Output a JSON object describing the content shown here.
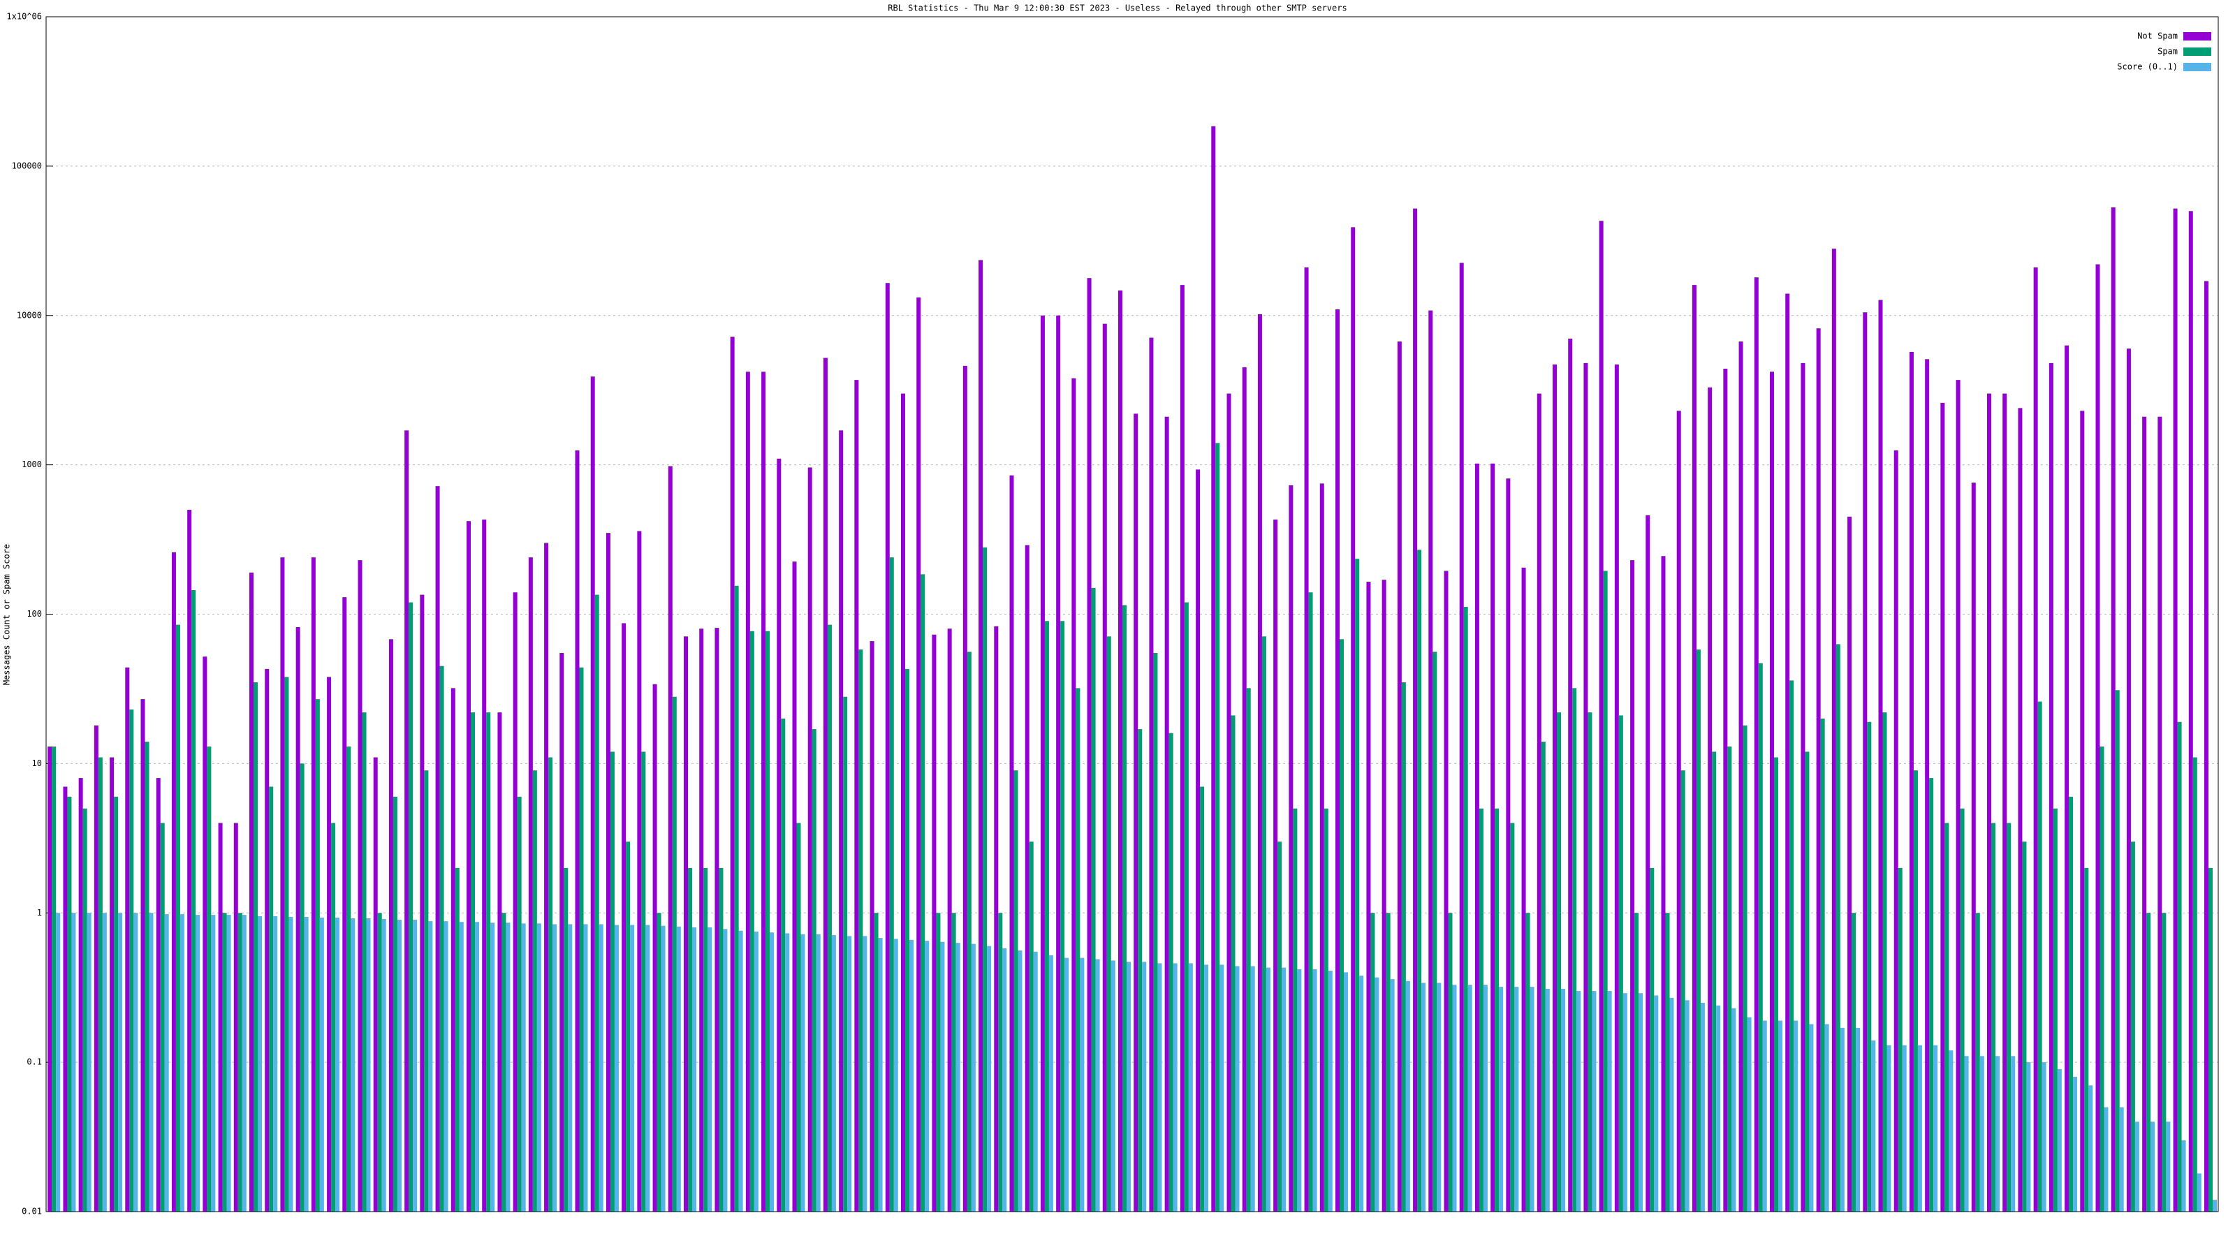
{
  "chart_data": {
    "type": "bar",
    "title": "RBL Statistics - Thu Mar  9 12:00:30 EST 2023 - Useless - Relayed through other SMTP servers",
    "y_label": "Messages Count or Spam Score",
    "log_y": true,
    "grid": true,
    "legend": "top-right",
    "ylim": [
      0.01,
      1000000
    ],
    "yticks": [
      0.01,
      0.1,
      1,
      10,
      100,
      1000,
      10000,
      100000,
      {
        "value": 1000000,
        "label": "1x10^06"
      }
    ],
    "categories": [
      null,
      null,
      null,
      null,
      null,
      null,
      null,
      null,
      null,
      null,
      null,
      null,
      null,
      null,
      null,
      null,
      null,
      null,
      null,
      null,
      null,
      null,
      null,
      null,
      null,
      null,
      null,
      null,
      null,
      null,
      null,
      null,
      null,
      null,
      null,
      null,
      null,
      null,
      null,
      null,
      null,
      null,
      null,
      null,
      null,
      null,
      null,
      null,
      null,
      null,
      null,
      null,
      null,
      null,
      null,
      null,
      null,
      null,
      null,
      null,
      null,
      null,
      null,
      null,
      null,
      null,
      null,
      null,
      null,
      null,
      null,
      null,
      null,
      null,
      null,
      null,
      null,
      null,
      null,
      null,
      null,
      null,
      null,
      null,
      null,
      null,
      null,
      null,
      null,
      null,
      null,
      null,
      null,
      null,
      null,
      null,
      null,
      null,
      null,
      null,
      null,
      null,
      null,
      null,
      null,
      null,
      null,
      null,
      null,
      null,
      null,
      null,
      null,
      null,
      null,
      null,
      null,
      null,
      null,
      null,
      null,
      null,
      null,
      null,
      null,
      null,
      null,
      null,
      null,
      null,
      null,
      null,
      null,
      null,
      null,
      null,
      null,
      null,
      null,
      null
    ],
    "series": [
      {
        "name": "Not Spam",
        "color": "#9400d3",
        "values": [
          13,
          7,
          8,
          18,
          11,
          44,
          27,
          8,
          260,
          500,
          52,
          4,
          4,
          190,
          43,
          240,
          82,
          240,
          38,
          130,
          230,
          11,
          68,
          1700,
          135,
          720,
          32,
          420,
          430,
          22,
          140,
          240,
          300,
          55,
          1250,
          3900,
          350,
          87,
          360,
          34,
          980,
          71,
          80,
          81,
          7200,
          4200,
          4200,
          1100,
          225,
          960,
          5200,
          1700,
          3700,
          66,
          16500,
          3000,
          13200,
          73,
          80,
          4600,
          23500,
          83,
          850,
          290,
          10000,
          10000,
          3800,
          17800,
          8800,
          14700,
          2200,
          7100,
          2100,
          16000,
          930,
          185000,
          3000,
          4500,
          10200,
          430,
          730,
          21000,
          750,
          11000,
          39000,
          165,
          170,
          6700,
          52000,
          10800,
          195,
          22500,
          1020,
          1020,
          810,
          205,
          3000,
          4700,
          7000,
          4800,
          43000,
          4700,
          230,
          460,
          245,
          2300,
          16000,
          3300,
          4400,
          6700,
          18000,
          4200,
          14000,
          4800,
          8200,
          28000,
          450,
          10500,
          12700,
          1250,
          5700,
          5100,
          2600,
          3700,
          760,
          3000,
          3000,
          2400,
          21000,
          4800,
          6300,
          2300,
          22000,
          53000,
          6000,
          2100,
          2100,
          52000,
          50000,
          17000
        ]
      },
      {
        "name": "Spam",
        "color": "#009e73",
        "values": [
          13,
          6,
          5,
          11,
          6,
          23,
          14,
          4,
          85,
          145,
          13,
          1,
          1,
          35,
          7,
          38,
          10,
          27,
          4,
          13,
          22,
          1,
          6,
          120,
          9,
          45,
          2,
          22,
          22,
          1,
          6,
          9,
          11,
          2,
          44,
          135,
          12,
          3,
          12,
          1,
          28,
          2,
          2,
          2,
          155,
          77,
          77,
          20,
          4,
          17,
          85,
          28,
          58,
          1,
          240,
          43,
          185,
          1,
          1,
          56,
          280,
          1,
          9,
          3,
          90,
          90,
          32,
          150,
          71,
          115,
          17,
          55,
          16,
          120,
          7,
          1400,
          21,
          32,
          71,
          3,
          5,
          140,
          5,
          68,
          235,
          1,
          1,
          35,
          270,
          56,
          1,
          112,
          5,
          5,
          4,
          1,
          14,
          22,
          32,
          22,
          195,
          21,
          1,
          2,
          1,
          9,
          58,
          12,
          13,
          18,
          47,
          11,
          36,
          12,
          20,
          63,
          1,
          19,
          22,
          2,
          9,
          8,
          4,
          5,
          1,
          4,
          4,
          3,
          26,
          5,
          6,
          2,
          13,
          31,
          3,
          1,
          1,
          19,
          11,
          2
        ]
      },
      {
        "name": "Score (0..1)",
        "color": "#56b4e9",
        "values": [
          1,
          1,
          1,
          1,
          1,
          1,
          1,
          0.98,
          0.98,
          0.97,
          0.97,
          0.97,
          0.97,
          0.95,
          0.95,
          0.94,
          0.94,
          0.93,
          0.93,
          0.92,
          0.92,
          0.91,
          0.9,
          0.9,
          0.88,
          0.88,
          0.87,
          0.87,
          0.86,
          0.86,
          0.85,
          0.85,
          0.84,
          0.84,
          0.84,
          0.84,
          0.83,
          0.83,
          0.83,
          0.82,
          0.81,
          0.8,
          0.8,
          0.78,
          0.76,
          0.75,
          0.74,
          0.73,
          0.72,
          0.72,
          0.71,
          0.7,
          0.7,
          0.68,
          0.67,
          0.66,
          0.65,
          0.64,
          0.63,
          0.62,
          0.6,
          0.58,
          0.56,
          0.55,
          0.52,
          0.5,
          0.5,
          0.49,
          0.48,
          0.47,
          0.47,
          0.46,
          0.46,
          0.46,
          0.45,
          0.45,
          0.44,
          0.44,
          0.43,
          0.43,
          0.42,
          0.42,
          0.41,
          0.4,
          0.38,
          0.37,
          0.36,
          0.35,
          0.34,
          0.34,
          0.33,
          0.33,
          0.33,
          0.32,
          0.32,
          0.32,
          0.31,
          0.31,
          0.3,
          0.3,
          0.3,
          0.29,
          0.29,
          0.28,
          0.27,
          0.26,
          0.25,
          0.24,
          0.23,
          0.2,
          0.19,
          0.19,
          0.19,
          0.18,
          0.18,
          0.17,
          0.17,
          0.14,
          0.13,
          0.13,
          0.13,
          0.13,
          0.12,
          0.11,
          0.11,
          0.11,
          0.11,
          0.1,
          0.1,
          0.09,
          0.08,
          0.07,
          0.05,
          0.05,
          0.04,
          0.04,
          0.04,
          0.03,
          0.018,
          0.012
        ]
      }
    ]
  }
}
